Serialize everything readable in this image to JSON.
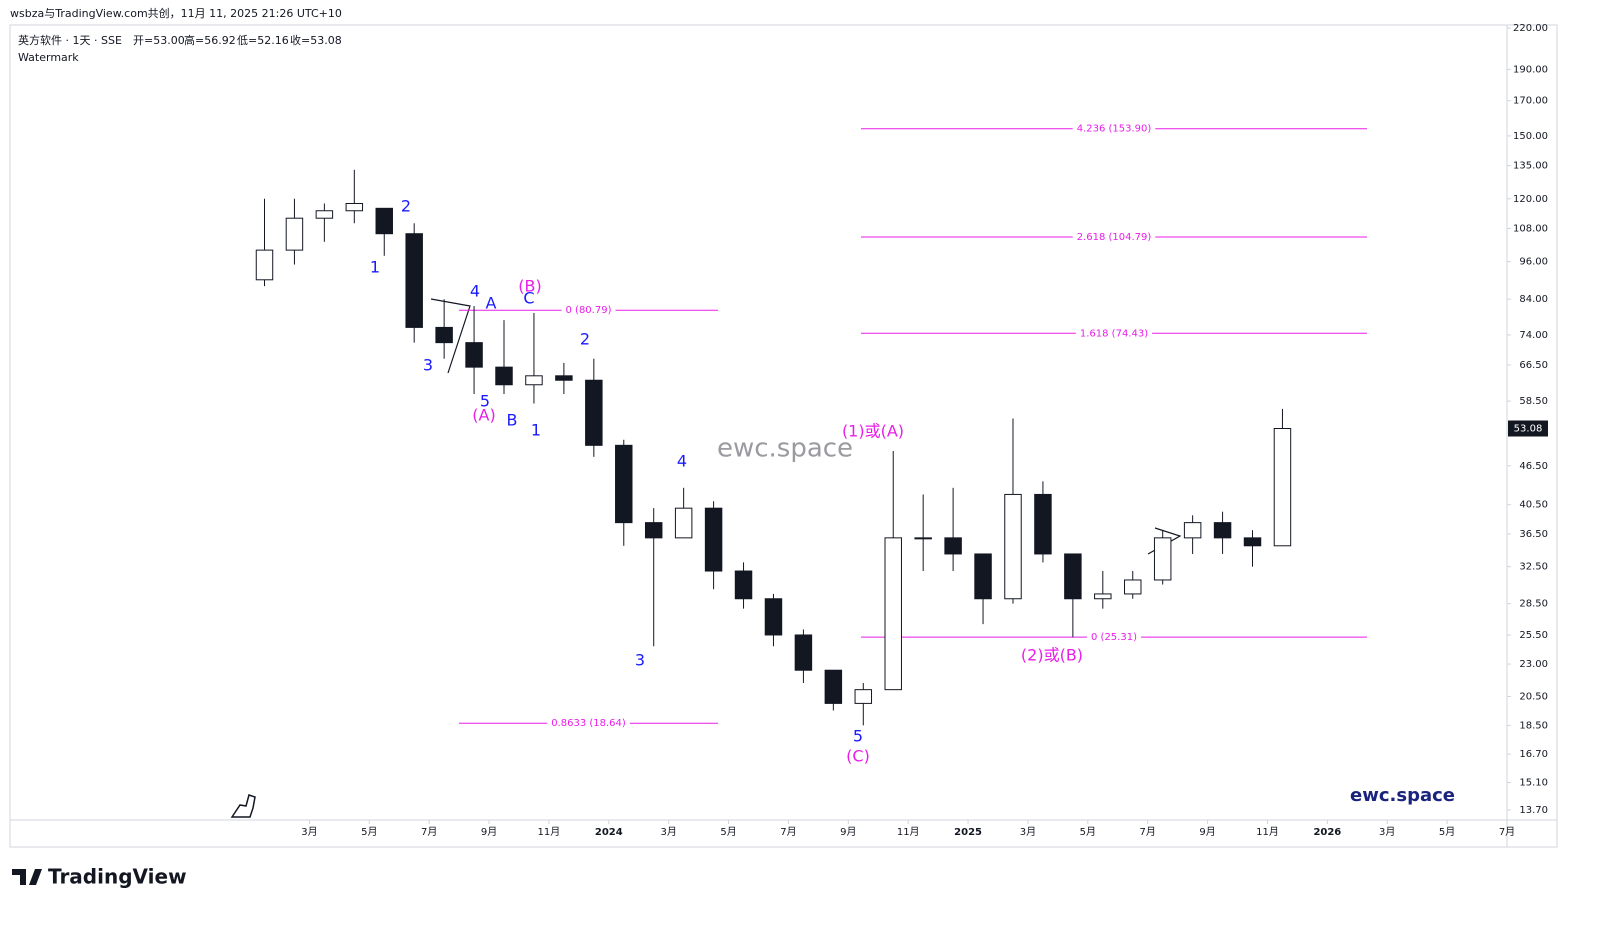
{
  "header": {
    "attribution": "wsbza与TradingView.com共创，11月 11, 2025 21:26 UTC+10",
    "symbol": "英方软件 · 1天 · SSE",
    "ohlc": [
      "开=53.00",
      "高=56.92",
      "低=52.16",
      "收=53.08"
    ],
    "indicator": "Watermark"
  },
  "footer": {
    "logo": "TradingView"
  },
  "chart_data": {
    "type": "candlestick",
    "color": "#131722",
    "log_scale": true,
    "watermark": "ewc.space",
    "brand": "ewc.space",
    "x": [
      "2023-01",
      "2023-02",
      "2023-03",
      "2023-04",
      "2023-05",
      "2023-06",
      "2023-07",
      "2023-08",
      "2023-09",
      "2023-10",
      "2023-11",
      "2023-12",
      "2024-01",
      "2024-02",
      "2024-03",
      "2024-04",
      "2024-05",
      "2024-06",
      "2024-07",
      "2024-08",
      "2024-09",
      "2024-10",
      "2024-11",
      "2024-12",
      "2025-01",
      "2025-02",
      "2025-03",
      "2025-04",
      "2025-05",
      "2025-06",
      "2025-07",
      "2025-08",
      "2025-09",
      "2025-10",
      "2025-11"
    ],
    "open": [
      90,
      100,
      112,
      115,
      116,
      106,
      76,
      72,
      66,
      62,
      64,
      63,
      50,
      38,
      36,
      40,
      32,
      29,
      25.5,
      22.5,
      20,
      21,
      36,
      36,
      34,
      29,
      42,
      34,
      29,
      29.5,
      31,
      36,
      38,
      36,
      35
    ],
    "high": [
      120,
      120,
      118,
      133,
      116,
      110,
      84,
      82,
      78,
      80,
      67,
      68,
      51,
      40,
      43,
      41,
      33,
      29.5,
      26,
      22.5,
      21.5,
      49,
      42,
      43,
      34,
      55,
      44,
      34,
      32,
      32,
      37,
      39,
      39.5,
      37,
      56.92
    ],
    "low": [
      88,
      95,
      103,
      110,
      98,
      72,
      68,
      60,
      60,
      58,
      60,
      48,
      35,
      24.5,
      36,
      30,
      28,
      24.5,
      21.5,
      19.5,
      18.5,
      21,
      32,
      32,
      26.5,
      28.5,
      33,
      25.3,
      28,
      29,
      30.5,
      34,
      34,
      32.5,
      35
    ],
    "close": [
      100,
      112,
      115,
      118,
      106,
      76,
      72,
      66,
      62,
      64,
      63,
      50,
      38,
      36,
      40,
      32,
      29,
      25.5,
      22.5,
      20,
      21,
      36,
      36,
      34,
      29,
      42,
      34,
      29,
      29.5,
      31,
      36,
      38,
      36,
      35,
      53.08
    ],
    "xlim": [
      "2022-05",
      "2026-07"
    ],
    "xticks": [
      {
        "value": "2023-03",
        "label": "3月"
      },
      {
        "value": "2023-05",
        "label": "5月"
      },
      {
        "value": "2023-07",
        "label": "7月"
      },
      {
        "value": "2023-09",
        "label": "9月"
      },
      {
        "value": "2023-11",
        "label": "11月"
      },
      {
        "value": "2024-01",
        "label": "2024"
      },
      {
        "value": "2024-03",
        "label": "3月"
      },
      {
        "value": "2024-05",
        "label": "5月"
      },
      {
        "value": "2024-07",
        "label": "7月"
      },
      {
        "value": "2024-09",
        "label": "9月"
      },
      {
        "value": "2024-11",
        "label": "11月"
      },
      {
        "value": "2025-01",
        "label": "2025"
      },
      {
        "value": "2025-03",
        "label": "3月"
      },
      {
        "value": "2025-05",
        "label": "5月"
      },
      {
        "value": "2025-07",
        "label": "7月"
      },
      {
        "value": "2025-09",
        "label": "9月"
      },
      {
        "value": "2025-11",
        "label": "11月"
      },
      {
        "value": "2026-01",
        "label": "2026"
      },
      {
        "value": "2026-03",
        "label": "3月"
      },
      {
        "value": "2026-05",
        "label": "5月"
      },
      {
        "value": "2026-07",
        "label": "7月"
      }
    ],
    "ylim": [
      13.22,
      222.4
    ],
    "yticks": [
      {
        "value": 220,
        "label": "220.00"
      },
      {
        "value": 190,
        "label": "190.00"
      },
      {
        "value": 170,
        "label": "170.00"
      },
      {
        "value": 150,
        "label": "150.00"
      },
      {
        "value": 135,
        "label": "135.00"
      },
      {
        "value": 120,
        "label": "120.00"
      },
      {
        "value": 108,
        "label": "108.00"
      },
      {
        "value": 96,
        "label": "96.00"
      },
      {
        "value": 84,
        "label": "84.00"
      },
      {
        "value": 74,
        "label": "74.00"
      },
      {
        "value": 66.5,
        "label": "66.50"
      },
      {
        "value": 58.5,
        "label": "58.50"
      },
      {
        "value": 46.5,
        "label": "46.50"
      },
      {
        "value": 40.5,
        "label": "40.50"
      },
      {
        "value": 36.5,
        "label": "36.50"
      },
      {
        "value": 32.5,
        "label": "32.50"
      },
      {
        "value": 28.5,
        "label": "28.50"
      },
      {
        "value": 25.5,
        "label": "25.50"
      },
      {
        "value": 23,
        "label": "23.00"
      },
      {
        "value": 20.5,
        "label": "20.50"
      },
      {
        "value": 18.5,
        "label": "18.50"
      },
      {
        "value": 16.7,
        "label": "16.70"
      },
      {
        "value": 15.1,
        "label": "15.10"
      },
      {
        "value": 13.7,
        "label": "13.70"
      }
    ],
    "fib_color": "#e91ee9",
    "fib_levels": [
      {
        "label": "0 (80.79)",
        "price": 80.79
      },
      {
        "label": "0.8633 (18.64)",
        "price": 18.64
      },
      {
        "label": "4.236 (153.90)",
        "price": 153.9
      },
      {
        "label": "2.618 (104.79)",
        "price": 104.79
      },
      {
        "label": "1.618 (74.43)",
        "price": 74.43
      },
      {
        "label": "0 (25.31)",
        "price": 25.31
      }
    ],
    "wave_labels": [
      {
        "text": "2",
        "color": "#1a1aff"
      },
      {
        "text": "1",
        "color": "#1a1aff"
      },
      {
        "text": "3",
        "color": "#1a1aff"
      },
      {
        "text": "4",
        "color": "#1a1aff"
      },
      {
        "text": "A",
        "color": "#1a1aff"
      },
      {
        "text": "(B)",
        "color": "#e91ee9"
      },
      {
        "text": "C",
        "color": "#1a1aff"
      },
      {
        "text": "5",
        "color": "#1a1aff"
      },
      {
        "text": "(A)",
        "color": "#e91ee9"
      },
      {
        "text": "B",
        "color": "#1a1aff"
      },
      {
        "text": "1",
        "color": "#1a1aff"
      },
      {
        "text": "2",
        "color": "#1a1aff"
      },
      {
        "text": "4",
        "color": "#1a1aff"
      },
      {
        "text": "3",
        "color": "#1a1aff"
      },
      {
        "text": "5",
        "color": "#1a1aff"
      },
      {
        "text": "(C)",
        "color": "#e91ee9"
      },
      {
        "text": "(1)或(A)",
        "color": "#e91ee9"
      },
      {
        "text": "(2)或(B)",
        "color": "#e91ee9"
      }
    ]
  }
}
